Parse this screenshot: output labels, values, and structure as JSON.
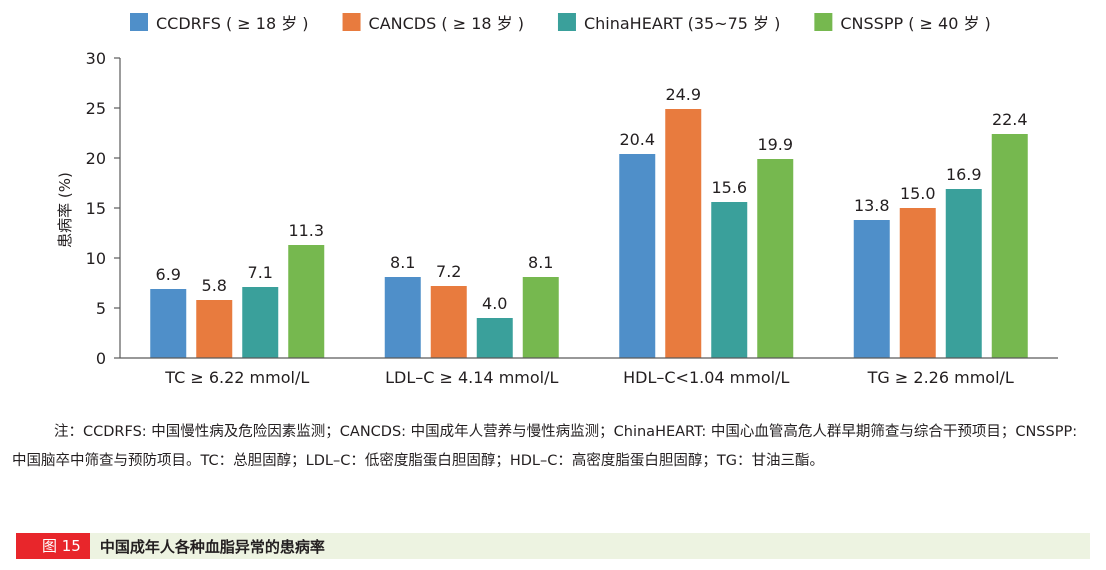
{
  "chart_data": {
    "type": "bar",
    "categories": [
      "TC ≥ 6.22 mmol/L",
      "LDL–C ≥ 4.14 mmol/L",
      "HDL–C<1.04 mmol/L",
      "TG ≥ 2.26 mmol/L"
    ],
    "series": [
      {
        "name": "CCDRFS ( ≥ 18 岁 )",
        "color": "#4f8fc9",
        "values": [
          6.9,
          8.1,
          20.4,
          13.8
        ],
        "labels": [
          "6.9",
          "8.1",
          "20.4",
          "13.8"
        ]
      },
      {
        "name": "CANCDS ( ≥ 18 岁 )",
        "color": "#e87b3e",
        "values": [
          5.8,
          7.2,
          24.9,
          15.0
        ],
        "labels": [
          "5.8",
          "7.2",
          "24.9",
          "15.0"
        ]
      },
      {
        "name": "ChinaHEART (35~75 岁 )",
        "color": "#3aa09b",
        "values": [
          7.1,
          4.0,
          15.6,
          16.9
        ],
        "labels": [
          "7.1",
          "4.0",
          "15.6",
          "16.9"
        ]
      },
      {
        "name": "CNSSPP ( ≥ 40 岁 )",
        "color": "#76b84f",
        "values": [
          11.3,
          8.1,
          19.9,
          22.4
        ],
        "labels": [
          "11.3",
          "8.1",
          "19.9",
          "22.4"
        ]
      }
    ],
    "ylabel": "患病率 (%)",
    "ylim": [
      0,
      30
    ],
    "yticks": [
      "0",
      "5",
      "10",
      "15",
      "20",
      "25",
      "30"
    ],
    "grid": false,
    "legend": "top"
  },
  "note": "注：CCDRFS: 中国慢性病及危险因素监测；CANCDS: 中国成年人营养与慢性病监测；ChinaHEART: 中国心血管高危人群早期筛查与综合干预项目；CNSSPP: 中国脑卒中筛查与预防项目。TC：总胆固醇；LDL–C：低密度脂蛋白胆固醇；HDL–C：高密度脂蛋白胆固醇；TG：甘油三酯。",
  "figure": {
    "label": "图 15",
    "title": "中国成年人各种血脂异常的患病率"
  }
}
